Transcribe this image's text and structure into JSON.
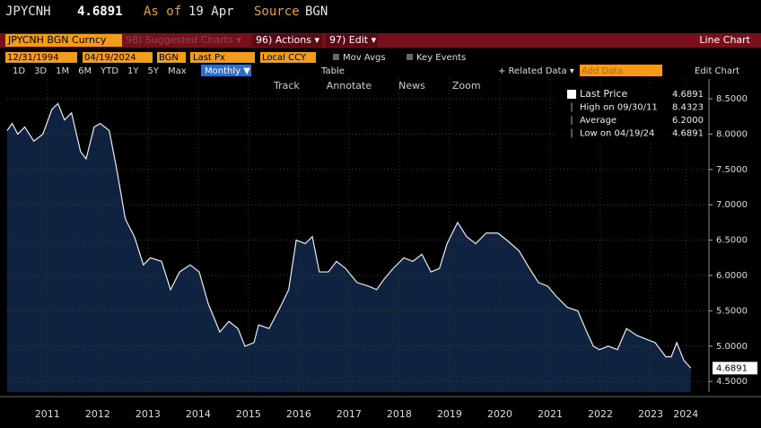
{
  "header": {
    "ticker": "JPYCNH",
    "price": "4.6891",
    "as_of": "As of",
    "date": "19 Apr",
    "source_label": "Source",
    "source": "BGN"
  },
  "toolbar": {
    "security": "JPYCNH BGN Curncy",
    "suggested": "98) Suggested Charts ▾",
    "actions": "96) Actions ▾",
    "edit": "97) Edit ▾",
    "chart_kind": "Line Chart",
    "start": "12/31/1994",
    "end": "04/19/2024",
    "source": "BGN",
    "field": "Last Px",
    "currency": "Local CCY",
    "mov_avgs": "Mov Avgs",
    "key_events": "Key Events",
    "periods": [
      "1D",
      "3D",
      "1M",
      "6M",
      "YTD",
      "1Y",
      "5Y",
      "Max"
    ],
    "frequency": "Monthly ▼",
    "table": "Table",
    "related": "+ Related Data ▾",
    "add_data": "Add Data",
    "edit_chart": "Edit Chart",
    "tools": [
      "Track",
      "Annotate",
      "News",
      "Zoom"
    ]
  },
  "chart_data": {
    "type": "line",
    "color": "#e8ecf2",
    "fill": "#0f223f",
    "legend": [
      {
        "label": "Last Price",
        "value": "4.6891"
      },
      {
        "label": "High on 09/30/11",
        "value": "8.4323"
      },
      {
        "label": "Average",
        "value": "6.2000"
      },
      {
        "label": "Low on 04/19/24",
        "value": "4.6891"
      }
    ],
    "last_label": "4.6891",
    "x": [
      2010.7,
      2010.8,
      2010.91,
      2011.05,
      2011.23,
      2011.41,
      2011.59,
      2011.71,
      2011.84,
      2011.98,
      2012.16,
      2012.27,
      2012.43,
      2012.55,
      2012.73,
      2012.88,
      2013.05,
      2013.23,
      2013.41,
      2013.55,
      2013.77,
      2013.95,
      2014.13,
      2014.34,
      2014.52,
      2014.7,
      2014.93,
      2015.11,
      2015.29,
      2015.43,
      2015.61,
      2015.7,
      2015.91,
      2016.13,
      2016.3,
      2016.45,
      2016.63,
      2016.77,
      2016.91,
      2017.09,
      2017.25,
      2017.43,
      2017.66,
      2017.88,
      2018.05,
      2018.2,
      2018.38,
      2018.59,
      2018.77,
      2018.95,
      2019.13,
      2019.3,
      2019.45,
      2019.66,
      2019.84,
      2020.02,
      2020.23,
      2020.46,
      2020.64,
      2020.88,
      2021.09,
      2021.27,
      2021.45,
      2021.63,
      2021.84,
      2022.05,
      2022.23,
      2022.36,
      2022.48,
      2022.66,
      2022.84,
      2023.02,
      2023.23,
      2023.41,
      2023.59,
      2023.8,
      2023.91,
      2024.02,
      2024.16,
      2024.3
    ],
    "values": [
      8.05,
      8.15,
      8.0,
      8.1,
      7.9,
      8.0,
      8.35,
      8.4323,
      8.2,
      8.3,
      7.75,
      7.65,
      8.1,
      8.15,
      8.05,
      7.5,
      6.8,
      6.55,
      6.15,
      6.25,
      6.2,
      5.8,
      6.05,
      6.15,
      6.05,
      5.6,
      5.2,
      5.35,
      5.25,
      5.0,
      5.05,
      5.3,
      5.25,
      5.55,
      5.8,
      6.5,
      6.45,
      6.55,
      6.05,
      6.05,
      6.2,
      6.1,
      5.9,
      5.85,
      5.8,
      5.95,
      6.1,
      6.25,
      6.2,
      6.3,
      6.05,
      6.1,
      6.45,
      6.75,
      6.55,
      6.45,
      6.6,
      6.6,
      6.5,
      6.35,
      6.1,
      5.9,
      5.85,
      5.7,
      5.55,
      5.5,
      5.2,
      5.0,
      4.95,
      5.0,
      4.95,
      5.25,
      5.15,
      5.1,
      5.05,
      4.85,
      4.85,
      5.05,
      4.8,
      4.6891
    ],
    "xlim": [
      2010.7,
      2024.66
    ],
    "ylim": [
      4.35,
      8.78
    ],
    "yticks": [
      {
        "value": 4.5,
        "label": "4.5000"
      },
      {
        "value": 5,
        "label": "5.0000"
      },
      {
        "value": 5.5,
        "label": "5.5000"
      },
      {
        "value": 6,
        "label": "6.0000"
      },
      {
        "value": 6.5,
        "label": "6.5000"
      },
      {
        "value": 7,
        "label": "7.0000"
      },
      {
        "value": 7.5,
        "label": "7.5000"
      },
      {
        "value": 8,
        "label": "8.0000"
      },
      {
        "value": 8.5,
        "label": "8.5000"
      }
    ],
    "xticks": [
      {
        "value": 2011.5,
        "label": "2011"
      },
      {
        "value": 2012.5,
        "label": "2012"
      },
      {
        "value": 2013.5,
        "label": "2013"
      },
      {
        "value": 2014.5,
        "label": "2014"
      },
      {
        "value": 2015.5,
        "label": "2015"
      },
      {
        "value": 2016.5,
        "label": "2016"
      },
      {
        "value": 2017.5,
        "label": "2017"
      },
      {
        "value": 2018.5,
        "label": "2018"
      },
      {
        "value": 2019.5,
        "label": "2019"
      },
      {
        "value": 2020.5,
        "label": "2020"
      },
      {
        "value": 2021.5,
        "label": "2021"
      },
      {
        "value": 2022.5,
        "label": "2022"
      },
      {
        "value": 2023.5,
        "label": "2023"
      },
      {
        "value": 2024.2,
        "label": "2024"
      }
    ],
    "grid": true
  }
}
